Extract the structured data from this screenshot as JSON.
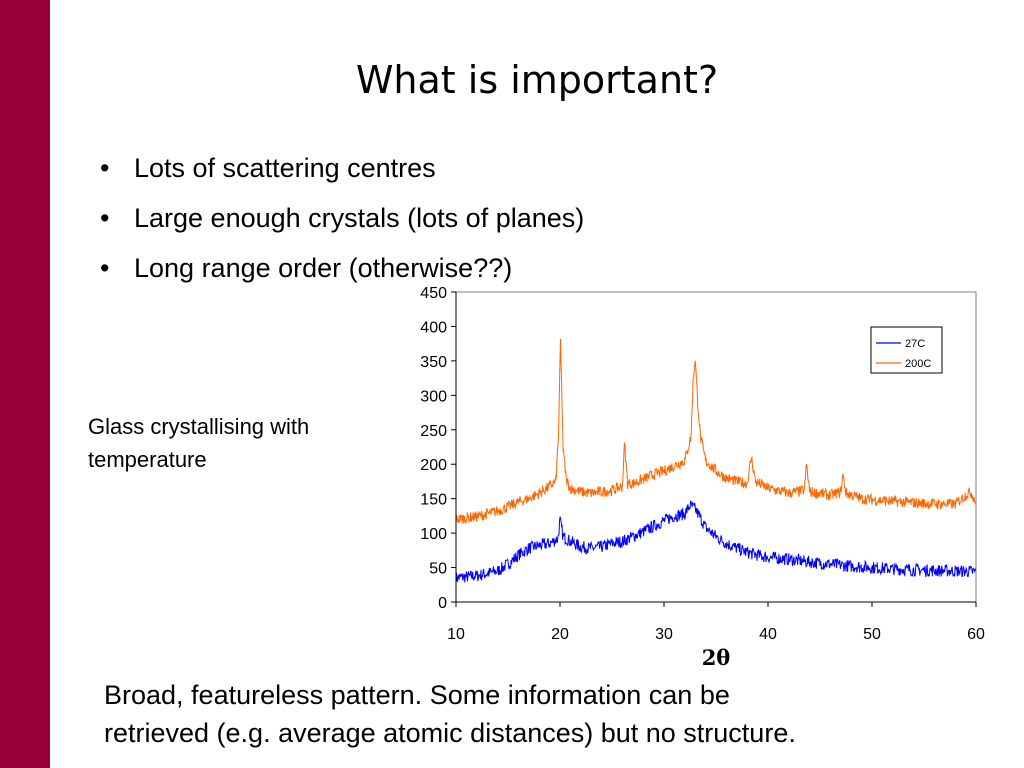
{
  "slide": {
    "accent_color": "#99003a",
    "title": "What is important?",
    "bullets": [
      "Lots of scattering centres",
      "Large enough crystals (lots of planes)",
      "Long range order  (otherwise??)"
    ],
    "bullet_symbol": "•",
    "caption_lines": [
      "Glass crystallising with",
      "temperature"
    ],
    "footer_lines": [
      "Broad, featureless pattern.  Some information can be",
      "retrieved (e.g. average atomic distances) but no structure."
    ]
  },
  "chart_data": {
    "type": "line",
    "title": "",
    "xlabel": "2θ",
    "ylabel": "",
    "xlim": [
      10,
      60
    ],
    "ylim": [
      0,
      450
    ],
    "x_ticks": [
      10,
      20,
      30,
      40,
      50,
      60
    ],
    "y_ticks": [
      0,
      50,
      100,
      150,
      200,
      250,
      300,
      350,
      400,
      450
    ],
    "grid": false,
    "legend_position": "top-right",
    "series": [
      {
        "name": "27C",
        "color": "#0000ff",
        "noise_amplitude": 9,
        "points": [
          [
            10,
            35
          ],
          [
            12,
            38
          ],
          [
            14,
            45
          ],
          [
            15,
            55
          ],
          [
            16,
            68
          ],
          [
            17,
            78
          ],
          [
            18,
            82
          ],
          [
            19,
            85
          ],
          [
            19.8,
            92
          ],
          [
            20,
            118
          ],
          [
            20.3,
            95
          ],
          [
            21,
            88
          ],
          [
            22,
            80
          ],
          [
            23,
            78
          ],
          [
            24,
            80
          ],
          [
            25,
            85
          ],
          [
            26,
            88
          ],
          [
            27,
            95
          ],
          [
            28,
            102
          ],
          [
            29,
            110
          ],
          [
            30,
            118
          ],
          [
            31,
            125
          ],
          [
            32,
            128
          ],
          [
            32.5,
            140
          ],
          [
            33,
            135
          ],
          [
            33.5,
            122
          ],
          [
            34,
            108
          ],
          [
            35,
            95
          ],
          [
            36,
            85
          ],
          [
            37,
            78
          ],
          [
            38,
            72
          ],
          [
            39,
            68
          ],
          [
            40,
            65
          ],
          [
            42,
            62
          ],
          [
            44,
            58
          ],
          [
            46,
            55
          ],
          [
            48,
            52
          ],
          [
            50,
            50
          ],
          [
            52,
            48
          ],
          [
            55,
            46
          ],
          [
            58,
            45
          ],
          [
            60,
            44
          ]
        ]
      },
      {
        "name": "200C",
        "color": "#ff6600",
        "noise_amplitude": 8,
        "points": [
          [
            10,
            120
          ],
          [
            12,
            124
          ],
          [
            14,
            132
          ],
          [
            15,
            138
          ],
          [
            16,
            145
          ],
          [
            17,
            150
          ],
          [
            18,
            158
          ],
          [
            19,
            168
          ],
          [
            19.6,
            175
          ],
          [
            19.85,
            240
          ],
          [
            20.05,
            380
          ],
          [
            20.3,
            220
          ],
          [
            20.6,
            178
          ],
          [
            21,
            165
          ],
          [
            22,
            160
          ],
          [
            23,
            158
          ],
          [
            24,
            160
          ],
          [
            25,
            162
          ],
          [
            26,
            168
          ],
          [
            26.2,
            230
          ],
          [
            26.5,
            172
          ],
          [
            27,
            172
          ],
          [
            28,
            178
          ],
          [
            29,
            185
          ],
          [
            30,
            190
          ],
          [
            31,
            198
          ],
          [
            32,
            205
          ],
          [
            32.6,
            240
          ],
          [
            32.8,
            320
          ],
          [
            33,
            355
          ],
          [
            33.2,
            300
          ],
          [
            33.5,
            240
          ],
          [
            34,
            205
          ],
          [
            35,
            190
          ],
          [
            36,
            180
          ],
          [
            37,
            175
          ],
          [
            38,
            172
          ],
          [
            38.4,
            210
          ],
          [
            38.8,
            175
          ],
          [
            40,
            165
          ],
          [
            42,
            158
          ],
          [
            43.5,
            162
          ],
          [
            43.7,
            200
          ],
          [
            44,
            160
          ],
          [
            46,
            155
          ],
          [
            47,
            160
          ],
          [
            47.2,
            185
          ],
          [
            47.5,
            158
          ],
          [
            49,
            150
          ],
          [
            52,
            146
          ],
          [
            55,
            143
          ],
          [
            58,
            142
          ],
          [
            59,
            155
          ],
          [
            59.5,
            160
          ],
          [
            60,
            145
          ]
        ]
      }
    ]
  }
}
